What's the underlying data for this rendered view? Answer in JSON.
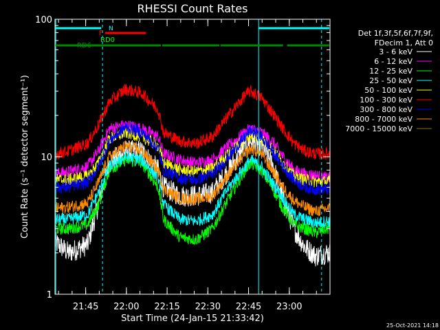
{
  "chart_data": {
    "type": "line",
    "title": "RHESSI Count Rates",
    "xlabel": "Start Time (24-Jan-15 21:33:42)",
    "ylabel": "Count Rate (s⁻¹ detector segment⁻¹)",
    "yscale": "log",
    "ylim": [
      1,
      100
    ],
    "xlim": [
      "21:33:42",
      "23:15:00"
    ],
    "x_unit": "minutes after 21:33:42",
    "xlim_minutes": [
      0,
      101.3
    ],
    "yticks": [
      "1",
      "10",
      "100"
    ],
    "xticks": [
      {
        "label": "21:45",
        "minutes": 11.3
      },
      {
        "label": "22:00",
        "minutes": 26.3
      },
      {
        "label": "22:15",
        "minutes": 41.3
      },
      {
        "label": "22:30",
        "minutes": 56.3
      },
      {
        "label": "22:45",
        "minutes": 71.3
      },
      {
        "label": "23:00",
        "minutes": 86.3
      }
    ],
    "legend_header": [
      "Det 1f,3f,5f,6f,7f,9f,",
      "FDecim 1, Att 0"
    ],
    "legend_position": "right",
    "timestamp": "25-Oct-2021 14:18",
    "series": [
      {
        "name": "3 - 6 keV",
        "color": "#ffffff",
        "x": [
          0,
          5,
          12,
          16,
          20,
          26,
          32,
          38,
          40,
          46,
          52,
          58,
          64,
          70,
          72,
          76,
          80,
          84,
          88,
          92,
          96,
          100
        ],
        "y": [
          2.4,
          2.0,
          2.3,
          4.5,
          9.0,
          11.0,
          11.0,
          8.0,
          6.0,
          5.2,
          5.2,
          5.5,
          8.0,
          12.0,
          13.0,
          12.0,
          9.0,
          5.0,
          3.0,
          2.2,
          1.9,
          2.0
        ]
      },
      {
        "name": "6 - 12 keV",
        "color": "#ff00ff",
        "x": [
          0,
          5,
          12,
          16,
          20,
          26,
          32,
          38,
          40,
          46,
          52,
          58,
          64,
          70,
          72,
          76,
          80,
          84,
          88,
          92,
          96,
          100
        ],
        "y": [
          7.5,
          7.8,
          8.5,
          11.0,
          16.0,
          17.0,
          16.0,
          14.0,
          10.5,
          9.5,
          9.0,
          9.5,
          12.0,
          15.0,
          16.0,
          15.0,
          13.0,
          10.0,
          8.0,
          7.5,
          7.3,
          7.0
        ]
      },
      {
        "name": "12 - 25 keV",
        "color": "#00ff00",
        "x": [
          0,
          5,
          12,
          16,
          20,
          26,
          32,
          38,
          40,
          46,
          52,
          58,
          64,
          70,
          72,
          76,
          80,
          84,
          88,
          92,
          96,
          100
        ],
        "y": [
          3.0,
          3.0,
          3.2,
          4.5,
          8.0,
          9.5,
          9.0,
          6.0,
          3.5,
          2.6,
          2.5,
          3.0,
          5.0,
          8.0,
          9.0,
          8.0,
          6.0,
          4.2,
          3.2,
          3.0,
          2.8,
          3.0
        ]
      },
      {
        "name": "25 - 50 keV",
        "color": "#00ffff",
        "x": [
          0,
          5,
          12,
          16,
          20,
          26,
          32,
          38,
          40,
          46,
          52,
          58,
          64,
          70,
          72,
          76,
          80,
          84,
          88,
          92,
          96,
          100
        ],
        "y": [
          3.5,
          3.5,
          3.8,
          5.5,
          8.5,
          10.0,
          9.5,
          7.0,
          4.5,
          3.5,
          3.4,
          3.8,
          6.0,
          8.5,
          9.5,
          8.5,
          6.5,
          5.0,
          3.8,
          3.5,
          3.3,
          3.4
        ]
      },
      {
        "name": "50 - 100 keV",
        "color": "#ffff00",
        "x": [
          0,
          5,
          12,
          16,
          20,
          26,
          32,
          38,
          40,
          46,
          52,
          58,
          64,
          70,
          72,
          76,
          80,
          84,
          88,
          92,
          96,
          100
        ],
        "y": [
          6.8,
          6.8,
          7.2,
          9.0,
          13.5,
          15.0,
          14.0,
          12.0,
          9.0,
          8.0,
          7.8,
          8.2,
          10.5,
          13.5,
          14.5,
          13.5,
          11.5,
          9.0,
          7.2,
          6.8,
          6.6,
          6.6
        ]
      },
      {
        "name": "100 - 300 keV",
        "color": "#ff0000",
        "x": [
          0,
          5,
          12,
          16,
          20,
          26,
          32,
          38,
          40,
          46,
          52,
          58,
          64,
          70,
          72,
          76,
          80,
          84,
          88,
          92,
          96,
          100
        ],
        "y": [
          10.5,
          11.0,
          12.5,
          17.0,
          25.0,
          31.0,
          29.0,
          22.0,
          15.0,
          13.0,
          12.5,
          14.0,
          20.0,
          28.0,
          30.0,
          27.0,
          21.0,
          16.0,
          12.5,
          11.0,
          10.5,
          10.5
        ]
      },
      {
        "name": "300 - 800 keV",
        "color": "#0000ff",
        "x": [
          0,
          5,
          12,
          16,
          20,
          26,
          32,
          38,
          40,
          46,
          52,
          58,
          64,
          70,
          72,
          76,
          80,
          84,
          88,
          92,
          96,
          100
        ],
        "y": [
          6.0,
          6.0,
          6.5,
          8.5,
          13.0,
          16.5,
          15.0,
          11.5,
          8.0,
          7.0,
          6.8,
          7.5,
          10.0,
          14.0,
          15.5,
          14.0,
          11.0,
          8.5,
          6.8,
          6.0,
          5.8,
          5.8
        ]
      },
      {
        "name": "800 - 7000 keV",
        "color": "#ff8c00",
        "x": [
          0,
          5,
          12,
          16,
          20,
          26,
          32,
          38,
          40,
          46,
          52,
          58,
          64,
          70,
          72,
          76,
          80,
          84,
          88,
          92,
          96,
          100
        ],
        "y": [
          4.2,
          4.3,
          4.6,
          6.5,
          10.0,
          12.0,
          11.0,
          8.0,
          5.8,
          5.0,
          4.9,
          5.2,
          7.5,
          10.5,
          11.5,
          10.5,
          8.0,
          6.0,
          4.8,
          4.3,
          4.0,
          4.2
        ]
      },
      {
        "name": "7000 - 15000 keV",
        "color": "#8b7500",
        "x": [],
        "y": []
      }
    ],
    "attenuator_bars": [
      {
        "label": "N",
        "color": "#00ffff",
        "segments": [
          [
            0,
            17
          ],
          [
            75,
            101
          ]
        ]
      },
      {
        "label": "F",
        "color": "#ff0000",
        "segments": [
          [
            18.5,
            33.5
          ]
        ]
      },
      {
        "label": "RD0",
        "color": "#00ff00",
        "segments": []
      },
      {
        "label": "RD6",
        "color": "#008800",
        "segments": [
          [
            0,
            39
          ],
          [
            39.5,
            60.5
          ],
          [
            61,
            84
          ],
          [
            85.5,
            101
          ]
        ]
      }
    ],
    "vertical_markers": [
      {
        "minutes": 0.3,
        "color": "#00ffff",
        "style": "solid"
      },
      {
        "minutes": 17.5,
        "color": "#00ffff",
        "style": "dashed"
      },
      {
        "minutes": 75.0,
        "color": "#00ffff",
        "style": "solid"
      },
      {
        "minutes": 98.2,
        "color": "#00ffff",
        "style": "dashed"
      }
    ]
  }
}
